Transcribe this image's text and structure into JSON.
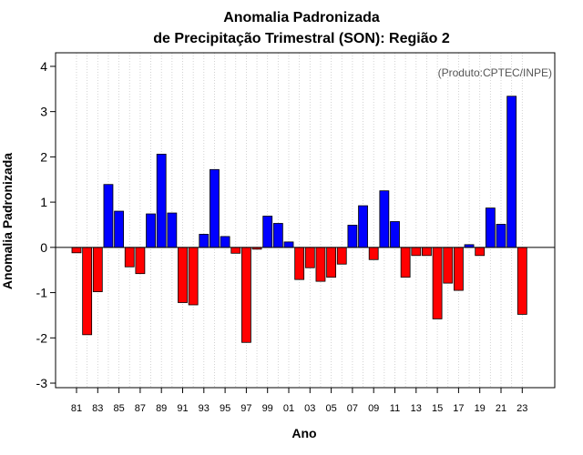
{
  "chart_data": {
    "type": "bar",
    "title_line1": "Anomalia Padronizada",
    "title_line2": "de Precipitação Trimestral (SON): Região 2",
    "xlabel": "Ano",
    "ylabel": "Anomalia Padronizada",
    "credit": "(Produto:CPTEC/INPE)",
    "ylim": [
      -3.1,
      4.3
    ],
    "yticks": [
      "-3",
      "-2",
      "-1",
      "0",
      "1",
      "2",
      "3",
      "4"
    ],
    "yticks_values": [
      -3,
      -2,
      -1,
      0,
      1,
      2,
      3,
      4
    ],
    "grid": "vertical dotted",
    "positive_color": "#0000ff",
    "negative_color": "#ff0000",
    "categories": [
      "81",
      "82",
      "83",
      "84",
      "85",
      "86",
      "87",
      "88",
      "89",
      "90",
      "91",
      "92",
      "93",
      "94",
      "95",
      "96",
      "97",
      "98",
      "99",
      "00",
      "01",
      "02",
      "03",
      "04",
      "05",
      "06",
      "07",
      "08",
      "09",
      "10",
      "11",
      "12",
      "13",
      "14",
      "15",
      "16",
      "17",
      "18",
      "19",
      "20",
      "21",
      "22",
      "23"
    ],
    "xtick_labels": [
      "81",
      "83",
      "85",
      "87",
      "89",
      "91",
      "93",
      "95",
      "97",
      "99",
      "01",
      "03",
      "05",
      "07",
      "09",
      "11",
      "13",
      "15",
      "17",
      "19",
      "21",
      "23"
    ],
    "values": [
      -0.12,
      -1.93,
      -0.98,
      1.39,
      0.8,
      -0.43,
      -0.58,
      0.74,
      2.06,
      0.76,
      -1.22,
      -1.27,
      0.29,
      1.72,
      0.24,
      -0.13,
      -2.1,
      -0.04,
      0.69,
      0.53,
      0.12,
      -0.71,
      -0.45,
      -0.75,
      -0.66,
      -0.37,
      0.49,
      0.92,
      -0.27,
      1.25,
      0.57,
      -0.66,
      -0.18,
      -0.18,
      -1.58,
      -0.79,
      -0.95,
      0.06,
      -0.18,
      0.87,
      0.51,
      3.34,
      -1.48
    ]
  }
}
